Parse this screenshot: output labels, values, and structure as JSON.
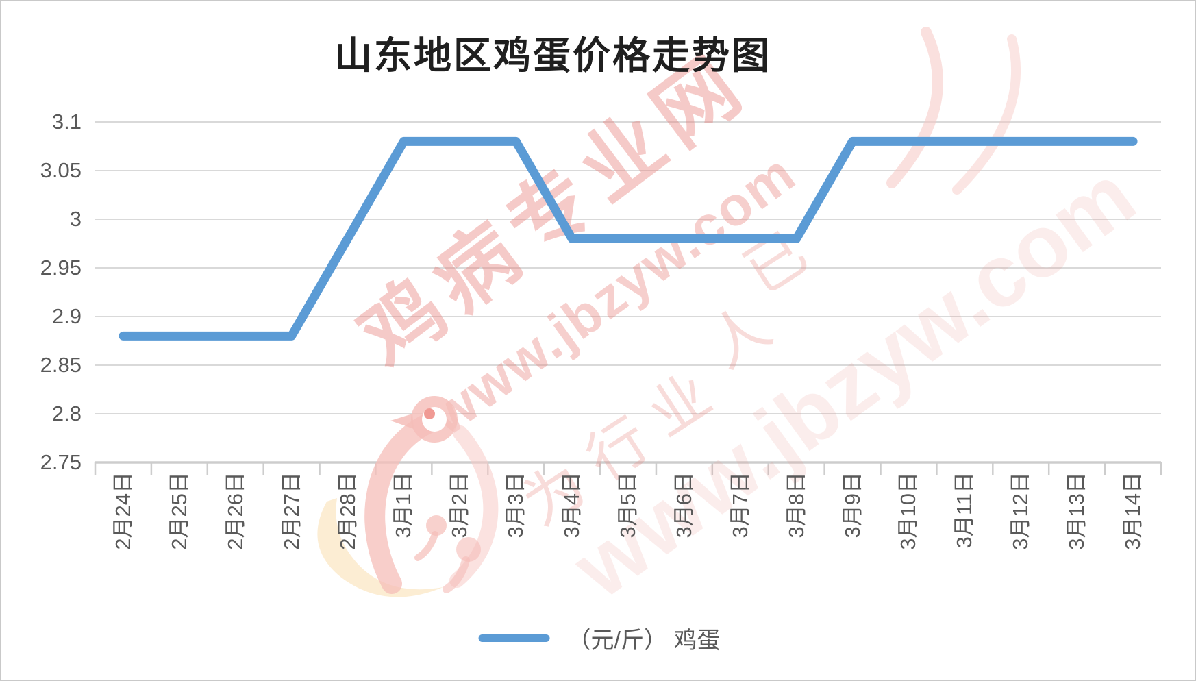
{
  "legend": {
    "label": "（元/斤） 鸡蛋"
  },
  "watermark": {
    "brand": "鸡病专业网",
    "url": "www.jbzyw.com",
    "url_faint": "www.jbzyw.com",
    "script_chars": [
      "为",
      "行",
      "业",
      "人",
      "已"
    ]
  },
  "chart_data": {
    "type": "line",
    "title": "山东地区鸡蛋价格走势图",
    "series_name": "（元/斤） 鸡蛋",
    "categories": [
      "2月24日",
      "2月25日",
      "2月26日",
      "2月27日",
      "2月28日",
      "3月1日",
      "3月2日",
      "3月3日",
      "3月4日",
      "3月5日",
      "3月6日",
      "3月7日",
      "3月8日",
      "3月9日",
      "3月10日",
      "3月11日",
      "3月12日",
      "3月13日",
      "3月14日"
    ],
    "values": [
      2.88,
      2.88,
      2.88,
      2.88,
      2.98,
      3.08,
      3.08,
      3.08,
      2.98,
      2.98,
      2.98,
      2.98,
      2.98,
      3.08,
      3.08,
      3.08,
      3.08,
      3.08,
      3.08
    ],
    "xlabel": "",
    "ylabel": "",
    "ylim": [
      2.75,
      3.1
    ],
    "y_ticks": [
      3.1,
      3.05,
      3.0,
      2.95,
      2.9,
      2.85,
      2.8,
      2.75
    ],
    "grid": true,
    "legend_position": "bottom",
    "line_color": "#5B9BD5",
    "grid_color": "#D9D9D9",
    "axis_color": "#CDCDCD",
    "label_color": "#595959"
  }
}
